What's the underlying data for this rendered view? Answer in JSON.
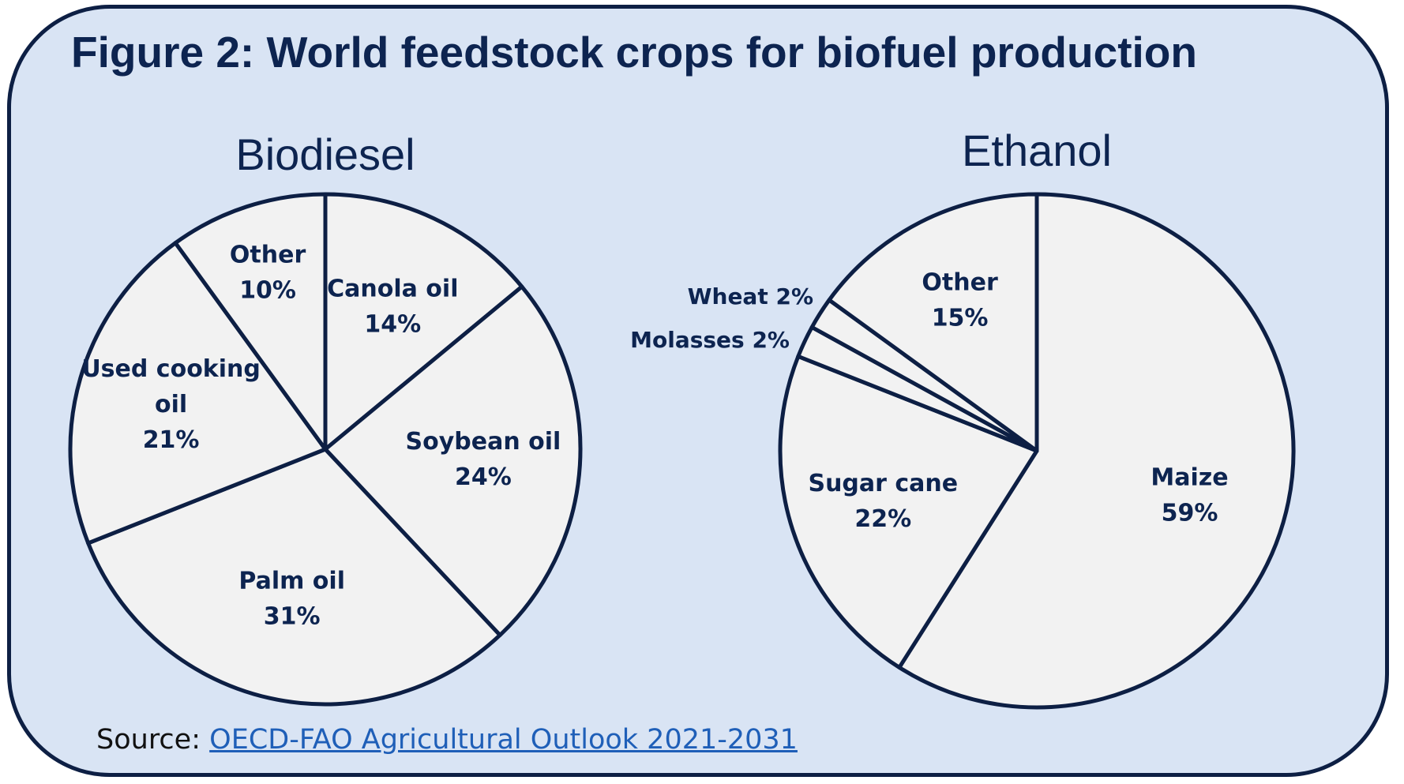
{
  "title": "Figure 2: World feedstock crops for biofuel production",
  "source": {
    "prefix": "Source:",
    "link_text": "OECD-FAO Agricultural Outlook 2021-2031"
  },
  "colors": {
    "card_background": "#d9e4f4",
    "border": "#0d1f44",
    "slice_fill": "#f2f2f2",
    "text": "#0d2450",
    "link": "#1f5fb8"
  },
  "chart_data": [
    {
      "type": "pie",
      "title": "Biodiesel",
      "start_angle_deg": 0,
      "direction": "clockwise",
      "slices": [
        {
          "label_lines": [
            "Canola oil"
          ],
          "pct_text": "14%",
          "value": 14
        },
        {
          "label_lines": [
            "Soybean oil"
          ],
          "pct_text": "24%",
          "value": 24
        },
        {
          "label_lines": [
            "Palm oil"
          ],
          "pct_text": "31%",
          "value": 31
        },
        {
          "label_lines": [
            "Used cooking",
            "oil"
          ],
          "pct_text": "21%",
          "value": 21
        },
        {
          "label_lines": [
            "Other"
          ],
          "pct_text": "10%",
          "value": 10
        }
      ]
    },
    {
      "type": "pie",
      "title": "Ethanol",
      "start_angle_deg": 0,
      "direction": "clockwise",
      "slices": [
        {
          "label_lines": [
            "Maize"
          ],
          "pct_text": "59%",
          "value": 59
        },
        {
          "label_lines": [
            "Sugar cane"
          ],
          "pct_text": "22%",
          "value": 22
        },
        {
          "label_lines": [
            "Molasses 2%"
          ],
          "pct_text": "",
          "value": 2,
          "label_outside": true
        },
        {
          "label_lines": [
            "Wheat 2%"
          ],
          "pct_text": "",
          "value": 2,
          "label_outside": true
        },
        {
          "label_lines": [
            "Other"
          ],
          "pct_text": "15%",
          "value": 15
        }
      ]
    }
  ]
}
